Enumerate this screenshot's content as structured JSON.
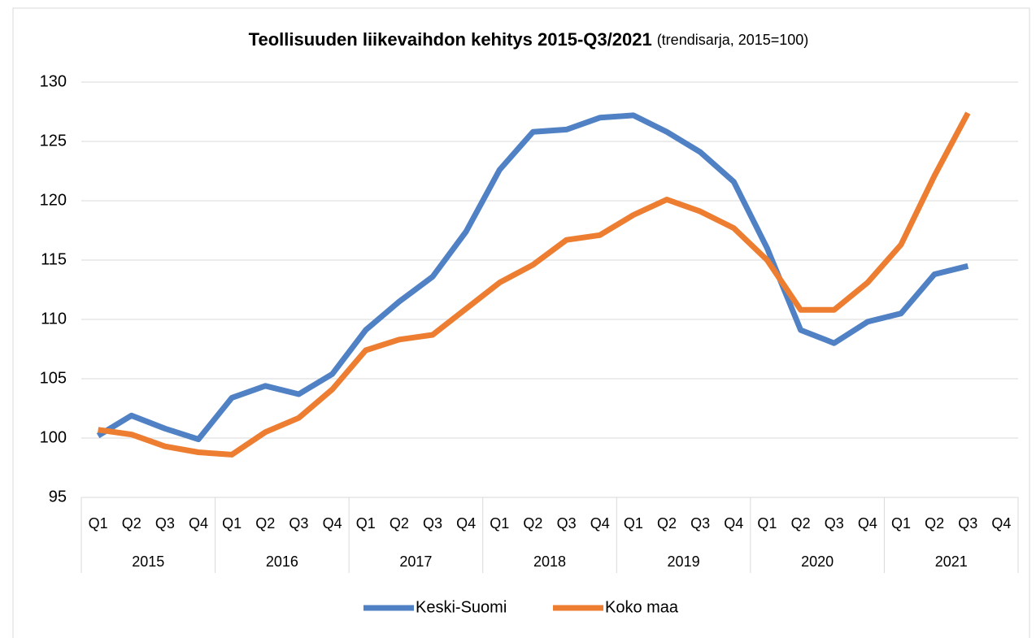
{
  "chart_data": {
    "type": "line",
    "title": "Teollisuuden liikevaihdon kehitys 2015-Q3/2021",
    "subtitle": "(trendisarja, 2015=100)",
    "categories": [
      "Q1",
      "Q2",
      "Q3",
      "Q4",
      "Q1",
      "Q2",
      "Q3",
      "Q4",
      "Q1",
      "Q2",
      "Q3",
      "Q4",
      "Q1",
      "Q2",
      "Q3",
      "Q4",
      "Q1",
      "Q2",
      "Q3",
      "Q4",
      "Q1",
      "Q2",
      "Q3",
      "Q4",
      "Q1",
      "Q2",
      "Q3",
      "Q4"
    ],
    "category_groups": [
      "2015",
      "2016",
      "2017",
      "2018",
      "2019",
      "2020",
      "2021"
    ],
    "series": [
      {
        "name": "Keski-Suomi",
        "color": "#4f81c4",
        "values": [
          100.2,
          101.9,
          100.8,
          99.9,
          103.4,
          104.4,
          103.7,
          105.4,
          109.1,
          111.5,
          113.6,
          117.4,
          122.6,
          125.8,
          126.0,
          127.0,
          127.2,
          125.8,
          124.1,
          121.6,
          116.0,
          109.1,
          108.0,
          109.8,
          110.5,
          113.8,
          114.5,
          null
        ]
      },
      {
        "name": "Koko maa",
        "color": "#ed7d31",
        "values": [
          100.7,
          100.3,
          99.3,
          98.8,
          98.6,
          100.5,
          101.7,
          104.1,
          107.4,
          108.3,
          108.7,
          110.9,
          113.1,
          114.6,
          116.7,
          117.1,
          118.8,
          120.1,
          119.1,
          117.7,
          115.0,
          110.8,
          110.8,
          113.1,
          116.3,
          122.1,
          127.4,
          null
        ]
      }
    ],
    "ylim": [
      95,
      130
    ],
    "yticks": [
      95,
      100,
      105,
      110,
      115,
      120,
      125,
      130
    ],
    "grid": true,
    "legend": "bottom"
  }
}
